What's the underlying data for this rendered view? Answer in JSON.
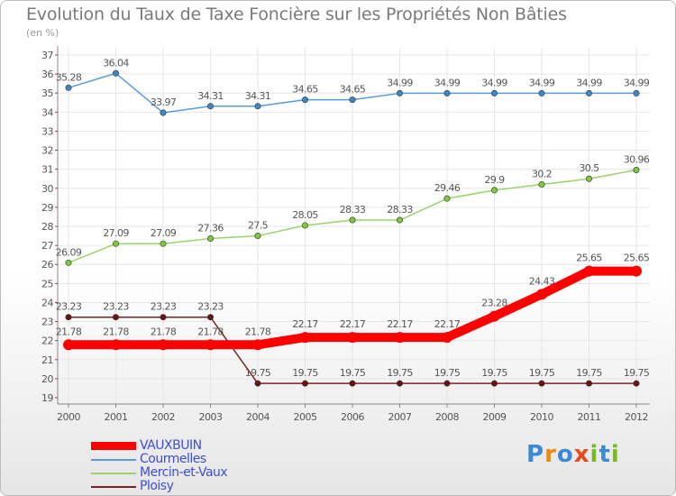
{
  "title": "Evolution du Taux de Taxe Foncière sur les Propriétés Non Bâties",
  "subtitle": "(en %)",
  "logo": {
    "text": "Proxiti",
    "letters": [
      {
        "ch": "P",
        "color": "#3a8ad8"
      },
      {
        "ch": "r",
        "color": "#e88a1a"
      },
      {
        "ch": "o",
        "color": "#3a8ad8"
      },
      {
        "ch": "x",
        "color": "#e84a1a"
      },
      {
        "ch": "i",
        "color": "#7ab82a"
      },
      {
        "ch": "t",
        "color": "#3a8ad8"
      },
      {
        "ch": "i",
        "color": "#7ab82a"
      }
    ]
  },
  "chart_data": {
    "type": "line",
    "title": "Evolution du Taux de Taxe Foncière sur les Propriétés Non Bâties",
    "ylabel": "(en %)",
    "xlabel": "",
    "x": [
      "2000",
      "2001",
      "2002",
      "2003",
      "2004",
      "2005",
      "2006",
      "2007",
      "2008",
      "2009",
      "2010",
      "2011",
      "2012"
    ],
    "ylim": [
      19,
      37
    ],
    "yticks": [
      "19",
      "20",
      "21",
      "22",
      "23",
      "24",
      "25",
      "26",
      "27",
      "28",
      "29",
      "30",
      "31",
      "32",
      "33",
      "34",
      "35",
      "36",
      "37"
    ],
    "grid": true,
    "legend_position": "bottom-left",
    "series": [
      {
        "name": "VAUXBUIN",
        "color": "#ff0000",
        "marker_color": "#ff0000",
        "emphasized": true,
        "values": [
          21.78,
          21.78,
          21.78,
          21.78,
          21.78,
          22.17,
          22.17,
          22.17,
          22.17,
          23.28,
          24.43,
          25.65,
          25.65
        ],
        "labels": [
          "21.78",
          "21.78",
          "21.78",
          "21.78",
          "21.78",
          "22.17",
          "22.17",
          "22.17",
          "22.17",
          "23.28",
          "24.43",
          "25.65",
          "25.65"
        ]
      },
      {
        "name": "Courmelles",
        "color": "#5b9bd5",
        "marker_color": "#3d86c8",
        "emphasized": false,
        "values": [
          35.28,
          36.04,
          33.97,
          34.31,
          34.31,
          34.65,
          34.65,
          34.99,
          34.99,
          34.99,
          34.99,
          34.99,
          34.99
        ],
        "labels": [
          "35.28",
          "36.04",
          "33.97",
          "34.31",
          "34.31",
          "34.65",
          "34.65",
          "34.99",
          "34.99",
          "34.99",
          "34.99",
          "34.99",
          "34.99"
        ]
      },
      {
        "name": "Mercin-et-Vaux",
        "color": "#9ad36a",
        "marker_color": "#7cc83e",
        "emphasized": false,
        "values": [
          26.09,
          27.09,
          27.09,
          27.36,
          27.5,
          28.05,
          28.33,
          28.33,
          29.46,
          29.9,
          30.2,
          30.5,
          30.96
        ],
        "labels": [
          "26.09",
          "27.09",
          "27.09",
          "27.36",
          "27.5",
          "28.05",
          "28.33",
          "28.33",
          "29.46",
          "29.9",
          "30.2",
          "30.5",
          "30.96"
        ]
      },
      {
        "name": "Ploisy",
        "color": "#7b2222",
        "marker_color": "#6b1414",
        "emphasized": false,
        "values": [
          23.23,
          23.23,
          23.23,
          23.23,
          19.75,
          19.75,
          19.75,
          19.75,
          19.75,
          19.75,
          19.75,
          19.75,
          19.75
        ],
        "labels": [
          "23.23",
          "23.23",
          "23.23",
          "23.23",
          "19.75",
          "19.75",
          "19.75",
          "19.75",
          "19.75",
          "19.75",
          "19.75",
          "19.75",
          "19.75"
        ]
      }
    ]
  }
}
